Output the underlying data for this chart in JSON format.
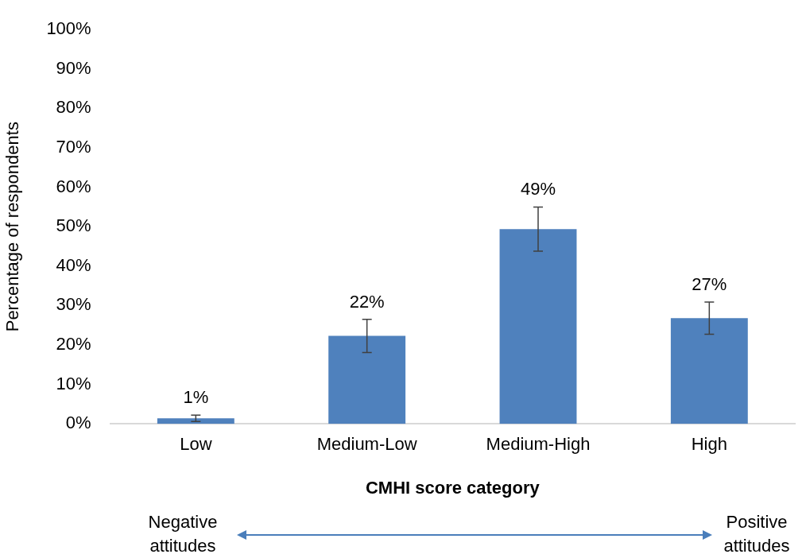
{
  "chart_data": {
    "type": "bar",
    "xlabel": "CMHI score category",
    "ylabel": "Percentage of respondents",
    "categories": [
      "Low",
      "Medium-Low",
      "Medium-High",
      "High"
    ],
    "values": [
      1.4,
      22.3,
      49.4,
      26.8
    ],
    "errors": [
      0.8,
      4.2,
      5.6,
      4.1
    ],
    "value_labels": [
      "1%",
      "22%",
      "49%",
      "27%"
    ],
    "color": "#4f81bd",
    "ylim": [
      0,
      100
    ],
    "yticks": [
      {
        "value": 0,
        "label": "0%"
      },
      {
        "value": 10,
        "label": "10%"
      },
      {
        "value": 20,
        "label": "20%"
      },
      {
        "value": 30,
        "label": "30%"
      },
      {
        "value": 40,
        "label": "40%"
      },
      {
        "value": 50,
        "label": "50%"
      },
      {
        "value": 60,
        "label": "60%"
      },
      {
        "value": 70,
        "label": "70%"
      },
      {
        "value": 80,
        "label": "80%"
      },
      {
        "value": 90,
        "label": "90%"
      },
      {
        "value": 100,
        "label": "100%"
      }
    ],
    "grid": false,
    "legend": false,
    "annotations": [
      "Negative\nattitudes",
      "Positive\nattitudes"
    ]
  }
}
